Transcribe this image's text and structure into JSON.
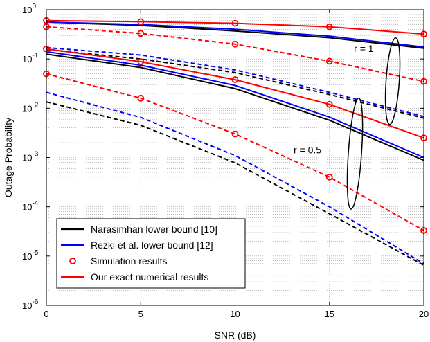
{
  "chart_data": {
    "type": "line",
    "xlabel": "SNR (dB)",
    "ylabel": "Outage Probability",
    "xlim": [
      0,
      20
    ],
    "ylim": [
      1e-06,
      1
    ],
    "yscale": "log",
    "grid": true,
    "x_ticks": [
      "0",
      "5",
      "10",
      "15",
      "20"
    ],
    "y_ticks": [
      {
        "base": "10",
        "exp": "-6",
        "value": 1e-06
      },
      {
        "base": "10",
        "exp": "-5",
        "value": 1e-05
      },
      {
        "base": "10",
        "exp": "-4",
        "value": 0.0001
      },
      {
        "base": "10",
        "exp": "-3",
        "value": 0.001
      },
      {
        "base": "10",
        "exp": "-2",
        "value": 0.01
      },
      {
        "base": "10",
        "exp": "-1",
        "value": 0.1
      },
      {
        "base": "10",
        "exp": "0",
        "value": 1
      }
    ],
    "x": [
      0,
      5,
      10,
      15,
      20
    ],
    "legend": {
      "placement": "bottom-left",
      "entries": [
        {
          "label": "Narasimhan lower bound [10]",
          "color": "#000000",
          "style": "line"
        },
        {
          "label": "Rezki et al. lower bound [12]",
          "color": "#0000ff",
          "style": "line"
        },
        {
          "label": "Simulation results",
          "color": "#ff0000",
          "style": "marker"
        },
        {
          "label": "Our exact numerical results",
          "color": "#ff0000",
          "style": "line"
        }
      ]
    },
    "annotations": [
      {
        "text": "r = 1",
        "x": 16.3,
        "y": 0.14
      },
      {
        "text": "r = 0.5",
        "x": 13.1,
        "y": 0.00122
      }
    ],
    "ellipses": [
      {
        "cx": 18.35,
        "cy_exp": -1.45,
        "rx": 0.35,
        "ry_exp": 0.88
      },
      {
        "cx": 16.35,
        "cy_exp": -2.92,
        "rx": 0.35,
        "ry_exp": 1.13
      }
    ],
    "series": [
      {
        "group": "r=1",
        "family": "Narasimhan",
        "color": "#000000",
        "dash": false,
        "values": [
          0.56,
          0.48,
          0.37,
          0.27,
          0.165
        ]
      },
      {
        "group": "r=1",
        "family": "Rezki",
        "color": "#0000ff",
        "dash": false,
        "values": [
          0.56,
          0.5,
          0.4,
          0.29,
          0.175
        ]
      },
      {
        "group": "r=1",
        "family": "Exact",
        "color": "#ff0000",
        "dash": false,
        "values": [
          0.6,
          0.57,
          0.53,
          0.45,
          0.32
        ]
      },
      {
        "group": "r=1",
        "family": "Narasimhan",
        "color": "#000000",
        "dash": true,
        "values": [
          0.155,
          0.1,
          0.053,
          0.019,
          0.0063
        ]
      },
      {
        "group": "r=1",
        "family": "Rezki",
        "color": "#0000ff",
        "dash": true,
        "values": [
          0.17,
          0.12,
          0.06,
          0.021,
          0.0068
        ]
      },
      {
        "group": "r=1",
        "family": "Exact",
        "color": "#ff0000",
        "dash": true,
        "values": [
          0.45,
          0.33,
          0.2,
          0.09,
          0.035
        ]
      },
      {
        "group": "r=0.5",
        "family": "Narasimhan",
        "color": "#000000",
        "dash": false,
        "values": [
          0.125,
          0.067,
          0.025,
          0.0057,
          0.00088
        ]
      },
      {
        "group": "r=0.5",
        "family": "Rezki",
        "color": "#0000ff",
        "dash": false,
        "values": [
          0.14,
          0.075,
          0.029,
          0.0066,
          0.001
        ]
      },
      {
        "group": "r=0.5",
        "family": "Exact",
        "color": "#ff0000",
        "dash": false,
        "values": [
          0.16,
          0.088,
          0.038,
          0.012,
          0.0025
        ]
      },
      {
        "group": "r=0.5",
        "family": "Narasimhan",
        "color": "#000000",
        "dash": true,
        "values": [
          0.0135,
          0.0045,
          0.00078,
          7.2e-05,
          6.5e-06
        ]
      },
      {
        "group": "r=0.5",
        "family": "Rezki",
        "color": "#0000ff",
        "dash": true,
        "values": [
          0.021,
          0.0065,
          0.0011,
          0.0001,
          7e-06
        ]
      },
      {
        "group": "r=0.5",
        "family": "Exact",
        "color": "#ff0000",
        "dash": true,
        "values": [
          0.05,
          0.016,
          0.003,
          0.0004,
          3.3e-05
        ]
      }
    ],
    "markers": [
      {
        "x": 0,
        "y": 0.6
      },
      {
        "x": 5,
        "y": 0.57
      },
      {
        "x": 10,
        "y": 0.53
      },
      {
        "x": 15,
        "y": 0.45
      },
      {
        "x": 20,
        "y": 0.32
      },
      {
        "x": 0,
        "y": 0.45
      },
      {
        "x": 5,
        "y": 0.33
      },
      {
        "x": 10,
        "y": 0.2
      },
      {
        "x": 15,
        "y": 0.09
      },
      {
        "x": 20,
        "y": 0.035
      },
      {
        "x": 0,
        "y": 0.16
      },
      {
        "x": 5,
        "y": 0.088
      },
      {
        "x": 10,
        "y": 0.038
      },
      {
        "x": 15,
        "y": 0.012
      },
      {
        "x": 20,
        "y": 0.0025
      },
      {
        "x": 0,
        "y": 0.05
      },
      {
        "x": 5,
        "y": 0.016
      },
      {
        "x": 10,
        "y": 0.003
      },
      {
        "x": 15,
        "y": 0.0004
      },
      {
        "x": 20,
        "y": 3.3e-05
      }
    ]
  }
}
